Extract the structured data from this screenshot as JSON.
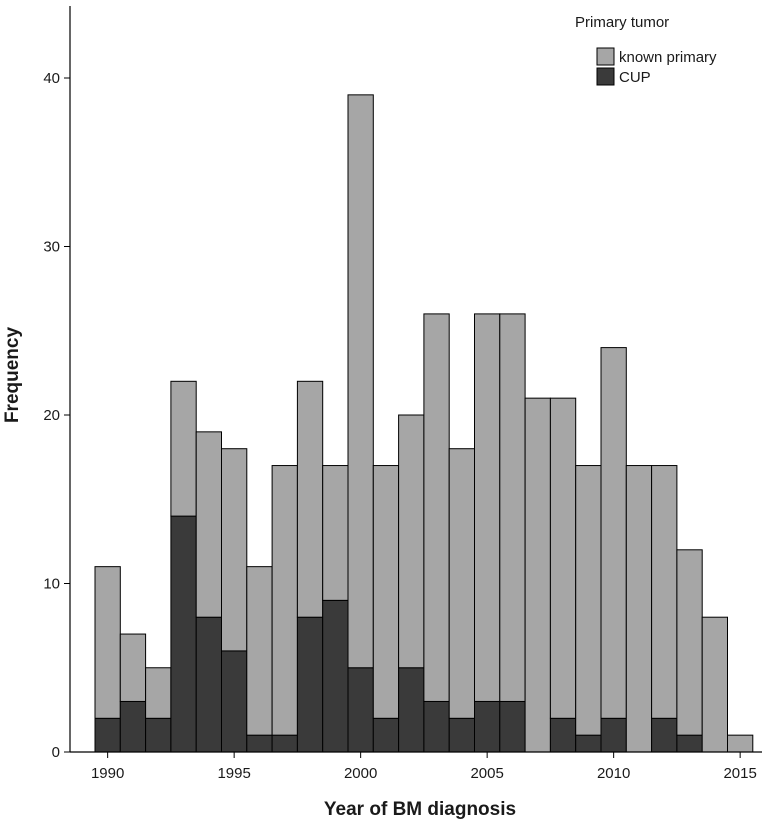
{
  "chart_data": {
    "type": "bar",
    "stacked": true,
    "xlabel": "Year of BM diagnosis",
    "ylabel": "Frequency",
    "xlim": [
      1988.7,
      1989.7
    ],
    "ylim": [
      0,
      45
    ],
    "years": [
      1990,
      1991,
      1992,
      1993,
      1994,
      1995,
      1996,
      1997,
      1998,
      1999,
      2000,
      2001,
      2002,
      2003,
      2004,
      2005,
      2006,
      2007,
      2008,
      2009,
      2010,
      2011,
      2012,
      2013,
      2014,
      2015
    ],
    "series": [
      {
        "name": "known primary",
        "color": "#a6a6a6",
        "values": [
          9,
          4,
          3,
          8,
          11,
          12,
          10,
          16,
          14,
          8,
          34,
          15,
          15,
          23,
          16,
          23,
          23,
          21,
          19,
          16,
          22,
          17,
          15,
          11,
          8,
          1
        ]
      },
      {
        "name": "CUP",
        "color": "#3a3a3a",
        "values": [
          2,
          3,
          2,
          14,
          8,
          6,
          1,
          1,
          8,
          9,
          5,
          2,
          5,
          3,
          2,
          3,
          3,
          0,
          2,
          1,
          2,
          0,
          2,
          1,
          0,
          0
        ]
      }
    ],
    "x_ticks": [
      1990,
      1995,
      2000,
      2005,
      2010,
      2015
    ],
    "y_ticks": [
      0,
      10,
      20,
      30,
      40
    ],
    "legend": {
      "title": "Primary tumor",
      "placement": "top-right"
    },
    "grid": false
  }
}
